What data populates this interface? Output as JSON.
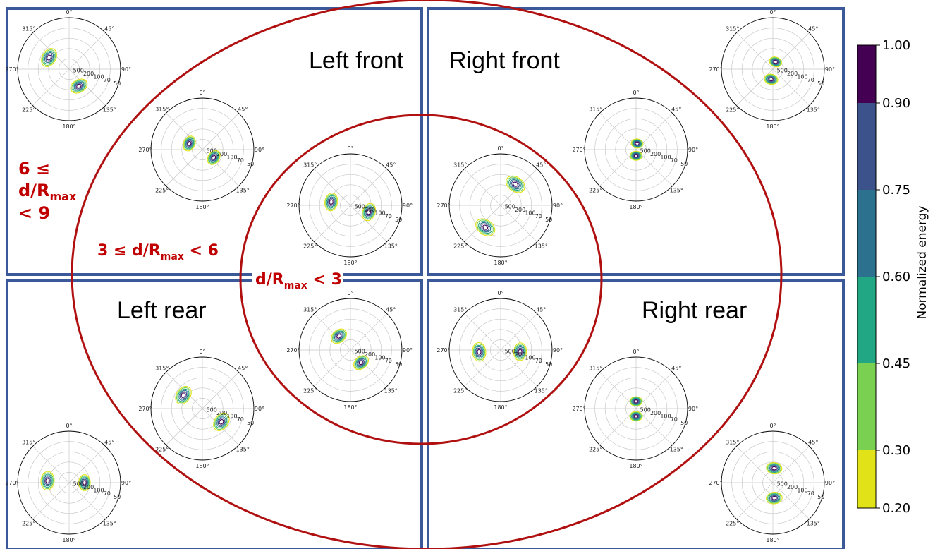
{
  "quadrants": {
    "left_front": "Left front",
    "right_front": "Right front",
    "left_rear": "Left rear",
    "right_rear": "Right rear"
  },
  "regions": {
    "outer": {
      "line1": "6 ≤",
      "line2_base": "d/R",
      "line2_sub": "max",
      "line3": "< 9"
    },
    "middle": {
      "base": "3 ≤ d/R",
      "sub": "max",
      "tail": " < 6"
    },
    "inner": {
      "base": "d/R",
      "sub": "max",
      "tail": " < 3"
    }
  },
  "colors": {
    "frame": "#3b5998",
    "region_ring": "#b01010",
    "region_text": "#c00000"
  },
  "chart_data": {
    "type": "polar-contour",
    "angle_ticks": [
      "0°",
      "45°",
      "90°",
      "135°",
      "180°",
      "225°",
      "270°",
      "315°"
    ],
    "radial_ticks": [
      "500",
      "200",
      "100",
      "70",
      "50"
    ],
    "colorbar": {
      "label": "Normalized energy",
      "ticks": [
        "1.00",
        "0.90",
        "0.75",
        "0.60",
        "0.45",
        "0.30",
        "0.20"
      ],
      "levels": [
        1.0,
        0.9,
        0.75,
        0.6,
        0.45,
        0.3,
        0.2
      ],
      "colors": [
        "#440154",
        "#3b528b",
        "#2c728e",
        "#21a784",
        "#7ad151",
        "#e1e318"
      ]
    },
    "plots": [
      {
        "id": "left-front-outer",
        "blobs": [
          {
            "a": 300,
            "r": 0.45
          },
          {
            "a": 150,
            "r": 0.38
          }
        ]
      },
      {
        "id": "left-front-middle",
        "blobs": [
          {
            "a": 295,
            "r": 0.28
          },
          {
            "a": 125,
            "r": 0.27
          }
        ]
      },
      {
        "id": "left-front-inner",
        "blobs": [
          {
            "a": 280,
            "r": 0.38
          },
          {
            "a": 110,
            "r": 0.38
          }
        ]
      },
      {
        "id": "right-front-inner",
        "blobs": [
          {
            "a": 35,
            "r": 0.5
          },
          {
            "a": 215,
            "r": 0.52
          }
        ]
      },
      {
        "id": "right-front-middle",
        "blobs": [
          {
            "a": 10,
            "r": 0.12
          },
          {
            "a": 180,
            "r": 0.12
          }
        ]
      },
      {
        "id": "right-front-outer",
        "blobs": [
          {
            "a": 20,
            "r": 0.15
          },
          {
            "a": 190,
            "r": 0.2
          }
        ]
      },
      {
        "id": "left-rear-inner",
        "blobs": [
          {
            "a": 320,
            "r": 0.35
          },
          {
            "a": 140,
            "r": 0.32
          }
        ]
      },
      {
        "id": "left-rear-middle",
        "blobs": [
          {
            "a": 305,
            "r": 0.45
          },
          {
            "a": 125,
            "r": 0.45
          }
        ]
      },
      {
        "id": "left-rear-outer",
        "blobs": [
          {
            "a": 275,
            "r": 0.42
          },
          {
            "a": 90,
            "r": 0.3
          }
        ]
      },
      {
        "id": "right-rear-inner",
        "blobs": [
          {
            "a": 265,
            "r": 0.42
          },
          {
            "a": 95,
            "r": 0.38
          }
        ]
      },
      {
        "id": "right-rear-middle",
        "blobs": [
          {
            "a": 0,
            "r": 0.14
          },
          {
            "a": 180,
            "r": 0.15
          }
        ]
      },
      {
        "id": "right-rear-outer",
        "blobs": [
          {
            "a": 5,
            "r": 0.28
          },
          {
            "a": 175,
            "r": 0.3
          }
        ]
      }
    ]
  }
}
